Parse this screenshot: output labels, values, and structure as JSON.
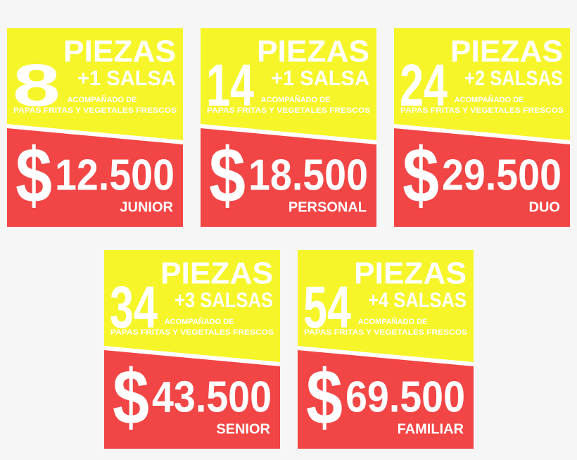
{
  "cards": [
    {
      "count": "8",
      "unit": "PIEZAS",
      "sauce": "+1 SALSA",
      "desc_1": "ACOMPAÑADO DE",
      "desc_2": "PAPAS FRITAS Y VEGETALES FRESCOS",
      "currency": "$",
      "price": "12.500",
      "name": "JUNIOR"
    },
    {
      "count": "14",
      "unit": "PIEZAS",
      "sauce": "+1 SALSA",
      "desc_1": "ACOMPAÑADO DE",
      "desc_2": "PAPAS FRITAS Y VEGETALES FRESCOS",
      "currency": "$",
      "price": "18.500",
      "name": "PERSONAL"
    },
    {
      "count": "24",
      "unit": "PIEZAS",
      "sauce": "+2 SALSAS",
      "desc_1": "ACOMPAÑADO DE",
      "desc_2": "PAPAS FRITAS Y VEGETALES FRESCOS",
      "currency": "$",
      "price": "29.500",
      "name": "DUO"
    },
    {
      "count": "34",
      "unit": "PIEZAS",
      "sauce": "+3 SALSAS",
      "desc_1": "ACOMPAÑADO DE",
      "desc_2": "PAPAS FRITAS Y VEGETALES FRESCOS",
      "currency": "$",
      "price": "43.500",
      "name": "SENIOR"
    },
    {
      "count": "54",
      "unit": "PIEZAS",
      "sauce": "+4 SALSAS",
      "desc_1": "ACOMPAÑADO DE",
      "desc_2": "PAPAS FRITAS Y VEGETALES FRESCOS",
      "currency": "$",
      "price": "69.500",
      "name": "FAMILIAR"
    }
  ]
}
